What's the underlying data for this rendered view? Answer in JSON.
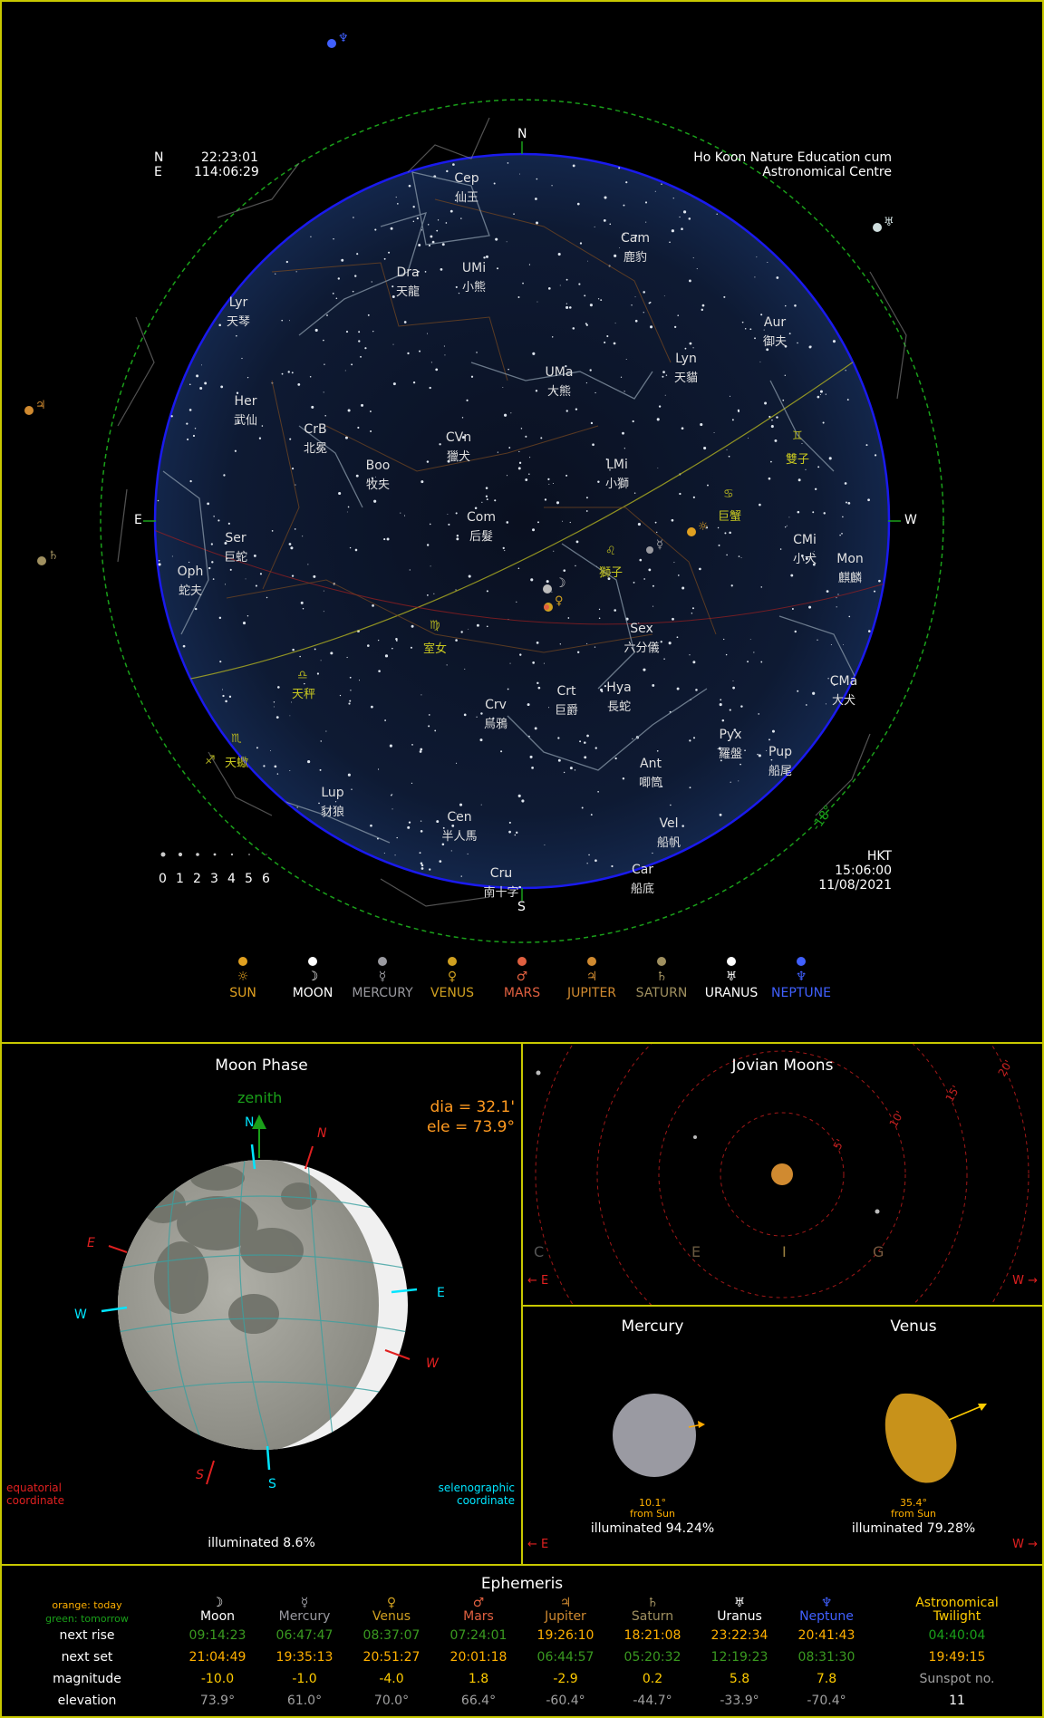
{
  "sky": {
    "lat_label": "N",
    "lat_value": "22:23:01",
    "lon_label": "E",
    "lon_value": "114:06:29",
    "location_line1": "Ho Koon Nature Education cum",
    "location_line2": "Astronomical Centre",
    "tz": "HKT",
    "time": "15:06:00",
    "date": "11/08/2021",
    "compass": {
      "N": "N",
      "S": "S",
      "E": "E",
      "W": "W"
    },
    "twilight_label": "-18°",
    "magnitude_scale": [
      "0",
      "1",
      "2",
      "3",
      "4",
      "5",
      "6"
    ],
    "constellations": [
      {
        "abbr": "Cep",
        "name": "仙王"
      },
      {
        "abbr": "Cam",
        "name": "鹿豹"
      },
      {
        "abbr": "Dra",
        "name": "天龍"
      },
      {
        "abbr": "UMi",
        "name": "小熊"
      },
      {
        "abbr": "Lyr",
        "name": "天琴"
      },
      {
        "abbr": "Aur",
        "name": "御夫"
      },
      {
        "abbr": "Lyn",
        "name": "天貓"
      },
      {
        "abbr": "UMa",
        "name": "大熊"
      },
      {
        "abbr": "Her",
        "name": "武仙"
      },
      {
        "abbr": "CrB",
        "name": "北冕"
      },
      {
        "abbr": "CVn",
        "name": "獵犬"
      },
      {
        "abbr": "Boo",
        "name": "牧夫"
      },
      {
        "abbr": "LMi",
        "name": "小獅"
      },
      {
        "abbr": "",
        "name": "雙子"
      },
      {
        "abbr": "",
        "name": "巨蟹"
      },
      {
        "abbr": "Com",
        "name": "后髮"
      },
      {
        "abbr": "Ser",
        "name": "巨蛇"
      },
      {
        "abbr": "Oph",
        "name": "蛇夫"
      },
      {
        "abbr": "",
        "name": "獅子"
      },
      {
        "abbr": "CMi",
        "name": "小犬"
      },
      {
        "abbr": "Mon",
        "name": "麒麟"
      },
      {
        "abbr": "",
        "name": "室女"
      },
      {
        "abbr": "Sex",
        "name": "六分儀"
      },
      {
        "abbr": "",
        "name": "天秤"
      },
      {
        "abbr": "Crv",
        "name": "烏鴉"
      },
      {
        "abbr": "Crt",
        "name": "巨爵"
      },
      {
        "abbr": "Hya",
        "name": "長蛇"
      },
      {
        "abbr": "CMa",
        "name": "大犬"
      },
      {
        "abbr": "",
        "name": "天蠍"
      },
      {
        "abbr": "Pyx",
        "name": "羅盤"
      },
      {
        "abbr": "Pup",
        "name": "船尾"
      },
      {
        "abbr": "Ant",
        "name": "唧筒"
      },
      {
        "abbr": "Lup",
        "name": "豺狼"
      },
      {
        "abbr": "Cen",
        "name": "半人馬"
      },
      {
        "abbr": "Vel",
        "name": "船帆"
      },
      {
        "abbr": "Cru",
        "name": "南十字"
      },
      {
        "abbr": "Car",
        "name": "船底"
      }
    ]
  },
  "legend": [
    {
      "sym": "☼",
      "label": "SUN",
      "color": "#e0a020"
    },
    {
      "sym": "☽",
      "label": "MOON",
      "color": "#ffffff"
    },
    {
      "sym": "☿",
      "label": "MERCURY",
      "color": "#9a9aa0"
    },
    {
      "sym": "♀",
      "label": "VENUS",
      "color": "#d0a020"
    },
    {
      "sym": "♂",
      "label": "MARS",
      "color": "#e06040"
    },
    {
      "sym": "♃",
      "label": "JUPITER",
      "color": "#d08a30"
    },
    {
      "sym": "♄",
      "label": "SATURN",
      "color": "#a09060"
    },
    {
      "sym": "♅",
      "label": "URANUS",
      "color": "#ffffff"
    },
    {
      "sym": "♆",
      "label": "NEPTUNE",
      "color": "#4060ff"
    }
  ],
  "moon_phase": {
    "title": "Moon Phase",
    "zenith": "zenith",
    "dia": "dia = 32.1'",
    "ele": "ele = 73.9°",
    "eq_N": "N",
    "eq_S": "S",
    "eq_E": "E",
    "eq_W": "W",
    "sel_N": "N",
    "sel_S": "S",
    "sel_E": "E",
    "sel_W": "W",
    "equatorial_1": "equatorial",
    "equatorial_2": "coordinate",
    "selenographic_1": "selenographic",
    "selenographic_2": "coordinate",
    "illuminated": "illuminated 8.6%"
  },
  "jovian": {
    "title": "Jovian Moons",
    "rings": [
      "5'",
      "10'",
      "15'",
      "20'"
    ],
    "moons": [
      "C",
      "E",
      "I",
      "G"
    ],
    "left_dir": "← E",
    "right_dir": "W →"
  },
  "inner_planets": {
    "mercury": {
      "title": "Mercury",
      "angle": "10.1°",
      "from": "from Sun",
      "illum": "illuminated 94.24%"
    },
    "venus": {
      "title": "Venus",
      "angle": "35.4°",
      "from": "from Sun",
      "illum": "illuminated 79.28%"
    },
    "left_dir": "← E",
    "right_dir": "W →"
  },
  "ephemeris": {
    "title": "Ephemeris",
    "note_today": "orange: today",
    "note_tomorrow": "green: tomorrow",
    "row_labels": [
      "next rise",
      "next set",
      "magnitude",
      "elevation"
    ],
    "columns": [
      {
        "sym": "☽",
        "name": "Moon",
        "name_color": "#ffffff",
        "rise": "09:14:23",
        "rise_color": "#3a9a20",
        "set": "21:04:49",
        "set_color": "#ffb000",
        "mag": "-10.0",
        "elev": "73.9°"
      },
      {
        "sym": "☿",
        "name": "Mercury",
        "name_color": "#9a9aa0",
        "rise": "06:47:47",
        "rise_color": "#3a9a20",
        "set": "19:35:13",
        "set_color": "#ffb000",
        "mag": "-1.0",
        "elev": "61.0°"
      },
      {
        "sym": "♀",
        "name": "Venus",
        "name_color": "#d0a020",
        "rise": "08:37:07",
        "rise_color": "#3a9a20",
        "set": "20:51:27",
        "set_color": "#ffb000",
        "mag": "-4.0",
        "elev": "70.0°"
      },
      {
        "sym": "♂",
        "name": "Mars",
        "name_color": "#e06040",
        "rise": "07:24:01",
        "rise_color": "#3a9a20",
        "set": "20:01:18",
        "set_color": "#ffb000",
        "mag": "1.8",
        "elev": "66.4°"
      },
      {
        "sym": "♃",
        "name": "Jupiter",
        "name_color": "#d08a30",
        "rise": "19:26:10",
        "rise_color": "#ffb000",
        "set": "06:44:57",
        "set_color": "#3a9a20",
        "mag": "-2.9",
        "elev": "-60.4°"
      },
      {
        "sym": "♄",
        "name": "Saturn",
        "name_color": "#a09060",
        "rise": "18:21:08",
        "rise_color": "#ffb000",
        "set": "05:20:32",
        "set_color": "#3a9a20",
        "mag": "0.2",
        "elev": "-44.7°"
      },
      {
        "sym": "♅",
        "name": "Uranus",
        "name_color": "#ffffff",
        "rise": "23:22:34",
        "rise_color": "#ffb000",
        "set": "12:19:23",
        "set_color": "#3a9a20",
        "mag": "5.8",
        "elev": "-33.9°"
      },
      {
        "sym": "♆",
        "name": "Neptune",
        "name_color": "#4060ff",
        "rise": "20:41:43",
        "rise_color": "#ffb000",
        "set": "08:31:30",
        "set_color": "#3a9a20",
        "mag": "7.8",
        "elev": "-70.4°"
      }
    ],
    "twilight": {
      "title1": "Astronomical",
      "title2": "Twilight",
      "rise": "04:40:04",
      "set": "19:49:15",
      "sunspot_label": "Sunspot no.",
      "sunspot": "11"
    }
  }
}
